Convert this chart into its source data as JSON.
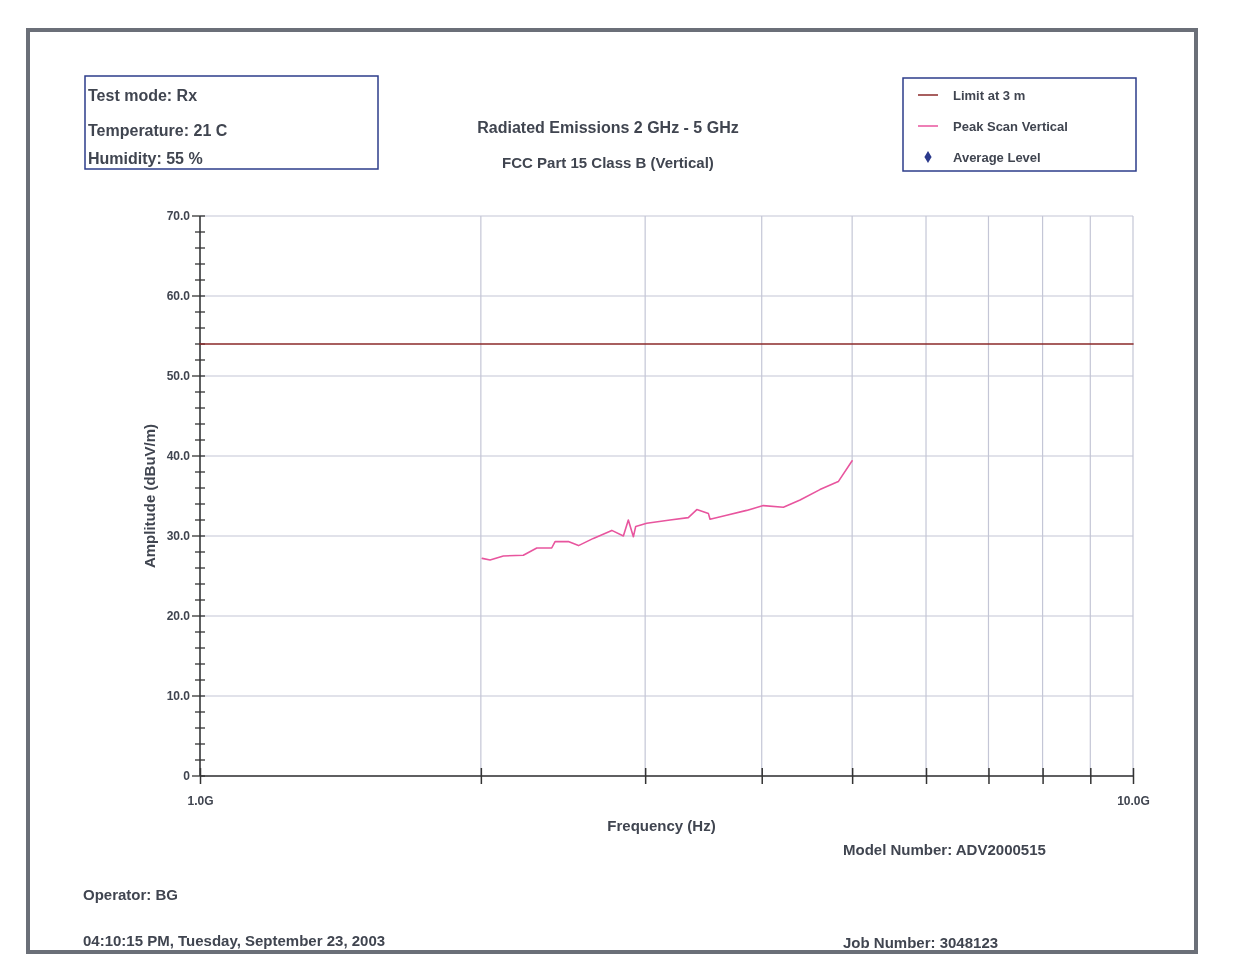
{
  "chart_data": {
    "type": "line",
    "title": "Radiated Emissions 2 GHz - 5 GHz",
    "subtitle": "FCC Part 15 Class B (Vertical)",
    "xlabel": "Frequency (Hz)",
    "ylabel": "Amplitude (dBuV/m)",
    "log": "x",
    "xlim": [
      1,
      10
    ],
    "xticks": [
      {
        "value": 1,
        "label": "1.0G"
      },
      {
        "value": 2,
        "label": null
      },
      {
        "value": 3,
        "label": null
      },
      {
        "value": 4,
        "label": null
      },
      {
        "value": 5,
        "label": null
      },
      {
        "value": 6,
        "label": null
      },
      {
        "value": 7,
        "label": null
      },
      {
        "value": 8,
        "label": null
      },
      {
        "value": 9,
        "label": null
      },
      {
        "value": 10,
        "label": "10.0G"
      }
    ],
    "ylim": [
      0,
      70
    ],
    "yticks": [
      {
        "value": 0,
        "label": "0"
      },
      {
        "value": 2,
        "label": null
      },
      {
        "value": 4,
        "label": null
      },
      {
        "value": 6,
        "label": null
      },
      {
        "value": 8,
        "label": null
      },
      {
        "value": 10,
        "label": "10.0"
      },
      {
        "value": 12,
        "label": null
      },
      {
        "value": 14,
        "label": null
      },
      {
        "value": 16,
        "label": null
      },
      {
        "value": 18,
        "label": null
      },
      {
        "value": 20,
        "label": "20.0"
      },
      {
        "value": 22,
        "label": null
      },
      {
        "value": 24,
        "label": null
      },
      {
        "value": 26,
        "label": null
      },
      {
        "value": 28,
        "label": null
      },
      {
        "value": 30,
        "label": "30.0"
      },
      {
        "value": 32,
        "label": null
      },
      {
        "value": 34,
        "label": null
      },
      {
        "value": 36,
        "label": null
      },
      {
        "value": 38,
        "label": null
      },
      {
        "value": 40,
        "label": "40.0"
      },
      {
        "value": 42,
        "label": null
      },
      {
        "value": 44,
        "label": null
      },
      {
        "value": 46,
        "label": null
      },
      {
        "value": 48,
        "label": null
      },
      {
        "value": 50,
        "label": "50.0"
      },
      {
        "value": 52,
        "label": null
      },
      {
        "value": 54,
        "label": null
      },
      {
        "value": 56,
        "label": null
      },
      {
        "value": 58,
        "label": null
      },
      {
        "value": 60,
        "label": "60.0"
      },
      {
        "value": 62,
        "label": null
      },
      {
        "value": 64,
        "label": null
      },
      {
        "value": 66,
        "label": null
      },
      {
        "value": 68,
        "label": null
      },
      {
        "value": 70,
        "label": "70.0"
      }
    ],
    "grid": true,
    "legend": "top right",
    "series": [
      {
        "name": "Limit at 3 m",
        "color": "#8b2a2a",
        "x": [
          1,
          10
        ],
        "values": [
          54,
          54
        ]
      },
      {
        "name": "Peak Scan Vertical",
        "color": "#e8559e",
        "x": [
          2.007,
          2.046,
          2.114,
          2.221,
          2.296,
          2.382,
          2.402,
          2.482,
          2.545,
          2.64,
          2.763,
          2.843,
          2.878,
          2.914,
          2.931,
          3.012,
          3.19,
          3.337,
          3.408,
          3.507,
          3.521,
          3.668,
          3.854,
          4.016,
          4.22,
          4.397,
          4.618,
          4.832,
          5.0
        ],
        "values": [
          27.2,
          27.0,
          27.5,
          27.6,
          28.5,
          28.5,
          29.3,
          29.3,
          28.8,
          29.7,
          30.7,
          30.0,
          32.0,
          29.9,
          31.2,
          31.6,
          32.0,
          32.3,
          33.3,
          32.8,
          32.1,
          32.6,
          33.2,
          33.8,
          33.6,
          34.5,
          35.8,
          36.8,
          39.4
        ]
      },
      {
        "name": "Average Level",
        "type": "scatter",
        "marker": "diamond",
        "color": "#2b3a8c"
      }
    ],
    "annotations": [
      "Test mode: Rx",
      "Temperature: 21 C",
      "Humidity: 55 %",
      "Model Number: ADV2000515",
      "Operator: BG",
      "04:10:15 PM, Tuesday, September 23, 2003",
      "Job Number: 3048123"
    ]
  }
}
